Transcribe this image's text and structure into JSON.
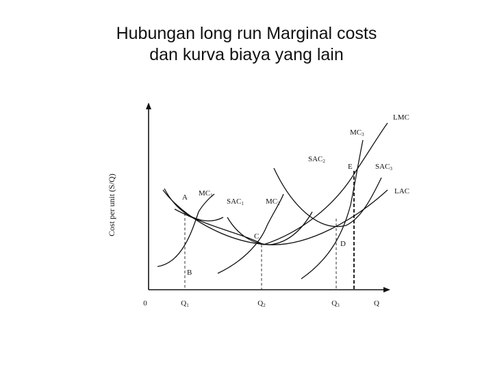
{
  "title": {
    "line1": "Hubungan long run Marginal costs",
    "line2": "dan kurva biaya yang lain"
  },
  "diagram": {
    "y_axis_label": "Cost per unit (S/Q)",
    "origin_label": "0",
    "x_axis_label": "Q",
    "x_ticks": {
      "q1": "Q",
      "q2": "Q",
      "q3": "Q"
    },
    "x_tick_subscripts": {
      "q1": "1",
      "q2": "2",
      "q3": "3"
    },
    "curves": {
      "lmc": "LMC",
      "lac": "LAC",
      "mc1": "MC",
      "mc1_sub": "1",
      "mc2": "MC",
      "mc2_sub": "2",
      "mc3": "MC",
      "mc3_sub": "3",
      "sac1": "SAC",
      "sac1_sub": "1",
      "sac2": "SAC",
      "sac2_sub": "2",
      "sac3": "SAC",
      "sac3_sub": "3"
    },
    "points": {
      "a": "A",
      "b": "B",
      "c": "C",
      "d": "D",
      "e": "E"
    }
  }
}
